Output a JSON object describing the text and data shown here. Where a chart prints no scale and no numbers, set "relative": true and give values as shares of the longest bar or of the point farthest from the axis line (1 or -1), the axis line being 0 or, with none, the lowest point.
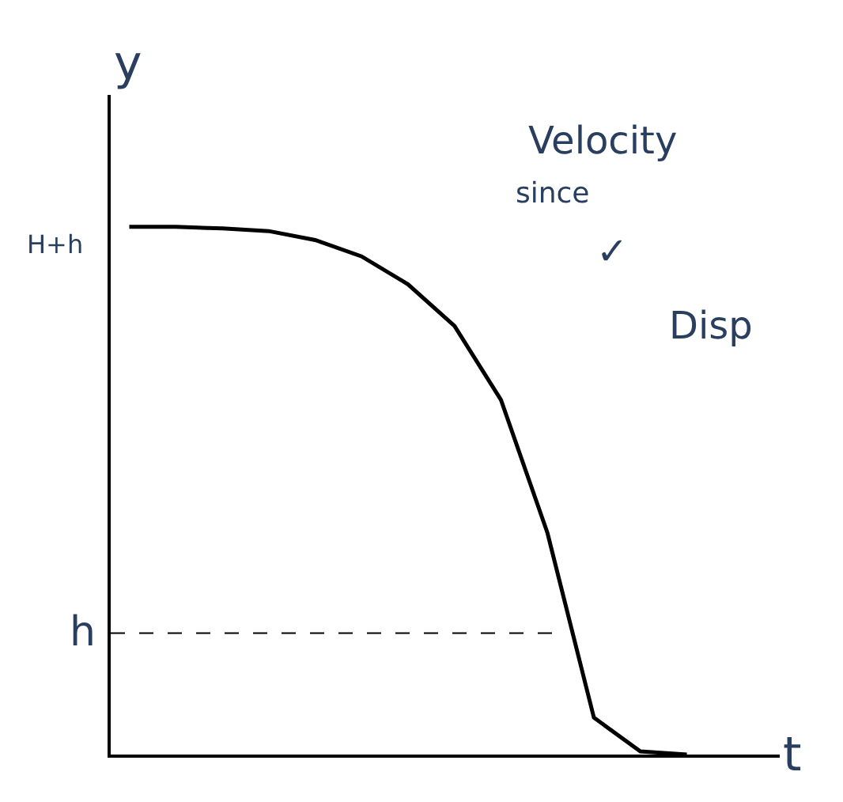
{
  "chart_data": {
    "type": "line",
    "relative": true,
    "xlabel": "t",
    "ylabel": "y",
    "color": "#000000",
    "categories": [
      null,
      null,
      null,
      null,
      null,
      null,
      null,
      null,
      null,
      null,
      null,
      null,
      null
    ],
    "values": [
      1,
      1,
      0.997,
      0.992,
      0.975,
      0.944,
      0.891,
      0.812,
      0.672,
      0.42,
      0.07,
      0.006,
      0
    ],
    "ref_lines": [
      {
        "axis": "y",
        "value": 0.23,
        "label": "h",
        "line_style": "dashed",
        "color": "#000000"
      }
    ],
    "annotations": [
      "H+h",
      "Velocity",
      "since",
      "✓",
      "Disp"
    ],
    "marker": "none",
    "line_style": "solid"
  }
}
